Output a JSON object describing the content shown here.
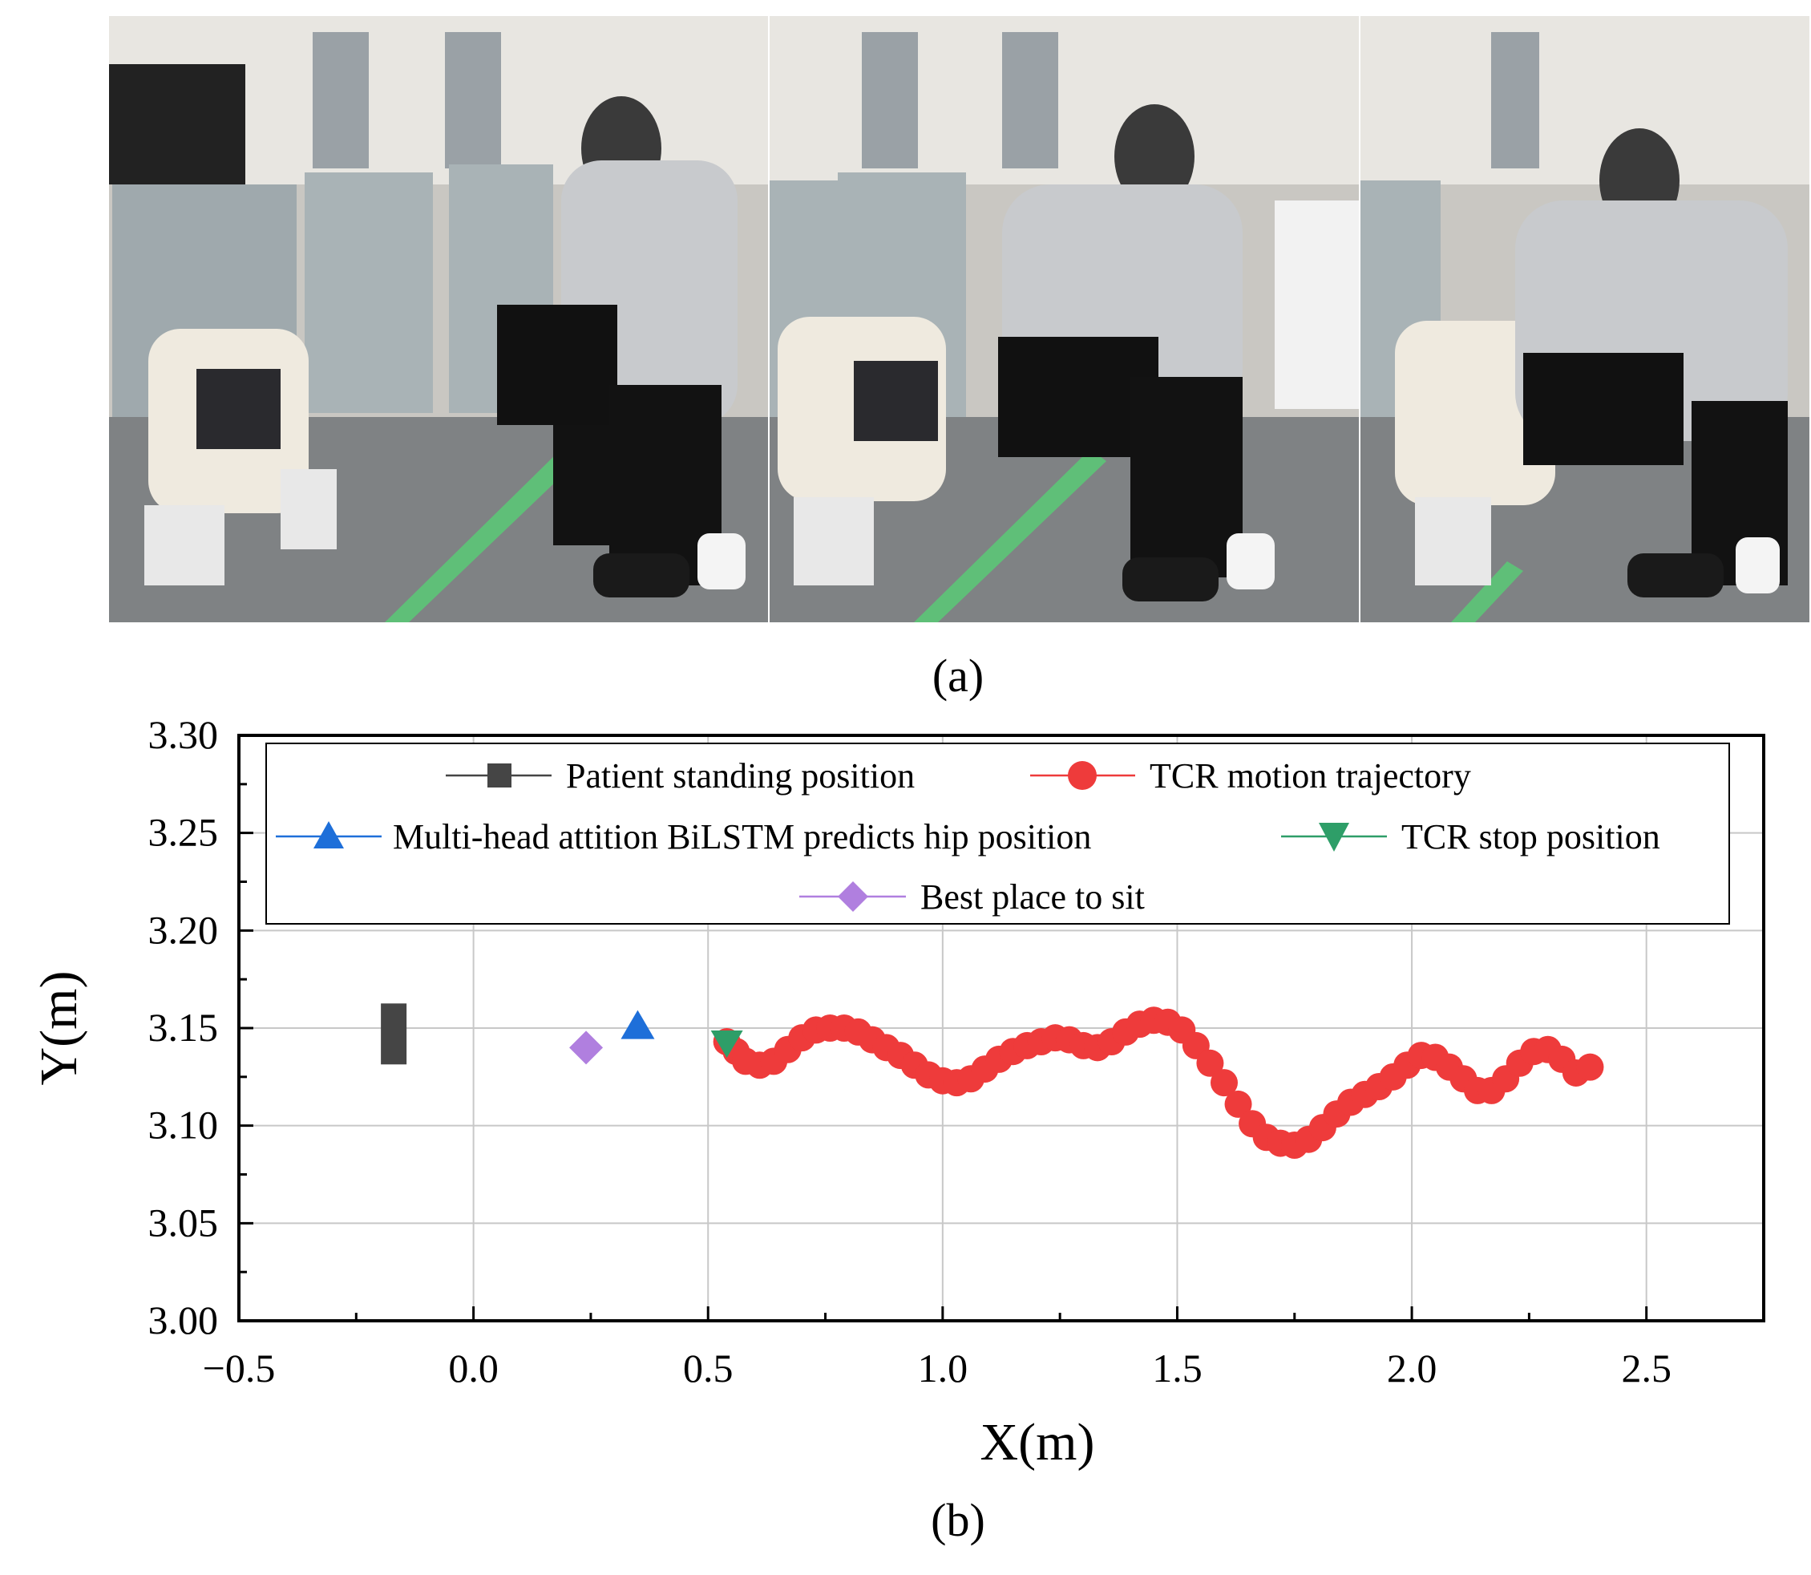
{
  "figure": {
    "panel_a_label": "(a)",
    "panel_b_label": "(b)",
    "photo_frames": [
      {
        "name": "frame-1",
        "description_icon": "person-assisting-patient-standing"
      },
      {
        "name": "frame-2",
        "description_icon": "person-assisting-patient-crouching"
      },
      {
        "name": "frame-3",
        "description_icon": "person-assisting-patient-sitting"
      }
    ]
  },
  "chart_data": {
    "type": "scatter",
    "title": "",
    "xlabel": "X(m)",
    "ylabel": "Y(m)",
    "xlim": [
      -0.5,
      2.75
    ],
    "ylim": [
      3.0,
      3.3
    ],
    "grid": true,
    "x_ticks": [
      -0.5,
      0.0,
      0.5,
      1.0,
      1.5,
      2.0,
      2.5
    ],
    "x_tick_labels": [
      "−0.5",
      "0.0",
      "0.5",
      "1.0",
      "1.5",
      "2.0",
      "2.5"
    ],
    "y_ticks": [
      3.0,
      3.05,
      3.1,
      3.15,
      3.2,
      3.25,
      3.3
    ],
    "y_tick_labels": [
      "3.00",
      "3.05",
      "3.10",
      "3.15",
      "3.20",
      "3.25",
      "3.30"
    ],
    "legend_position": "top",
    "series": [
      {
        "name": "Patient standing position",
        "marker": "square",
        "color": "#454545",
        "points": [
          [
            -0.17,
            3.147
          ]
        ]
      },
      {
        "name": "TCR motion trajectory",
        "marker": "circle",
        "color": "#ee3b3b",
        "points": [
          [
            0.54,
            3.143
          ],
          [
            0.56,
            3.138
          ],
          [
            0.58,
            3.133
          ],
          [
            0.61,
            3.131
          ],
          [
            0.64,
            3.133
          ],
          [
            0.67,
            3.139
          ],
          [
            0.7,
            3.145
          ],
          [
            0.73,
            3.149
          ],
          [
            0.76,
            3.15
          ],
          [
            0.79,
            3.15
          ],
          [
            0.82,
            3.148
          ],
          [
            0.85,
            3.144
          ],
          [
            0.88,
            3.14
          ],
          [
            0.91,
            3.136
          ],
          [
            0.94,
            3.131
          ],
          [
            0.97,
            3.126
          ],
          [
            1.0,
            3.123
          ],
          [
            1.03,
            3.122
          ],
          [
            1.06,
            3.124
          ],
          [
            1.09,
            3.129
          ],
          [
            1.12,
            3.134
          ],
          [
            1.15,
            3.138
          ],
          [
            1.18,
            3.141
          ],
          [
            1.21,
            3.143
          ],
          [
            1.24,
            3.145
          ],
          [
            1.27,
            3.144
          ],
          [
            1.3,
            3.141
          ],
          [
            1.33,
            3.14
          ],
          [
            1.36,
            3.143
          ],
          [
            1.39,
            3.148
          ],
          [
            1.42,
            3.152
          ],
          [
            1.45,
            3.154
          ],
          [
            1.48,
            3.153
          ],
          [
            1.51,
            3.149
          ],
          [
            1.54,
            3.141
          ],
          [
            1.57,
            3.132
          ],
          [
            1.6,
            3.122
          ],
          [
            1.63,
            3.111
          ],
          [
            1.66,
            3.101
          ],
          [
            1.69,
            3.094
          ],
          [
            1.72,
            3.091
          ],
          [
            1.75,
            3.09
          ],
          [
            1.78,
            3.093
          ],
          [
            1.81,
            3.099
          ],
          [
            1.84,
            3.106
          ],
          [
            1.87,
            3.112
          ],
          [
            1.9,
            3.116
          ],
          [
            1.93,
            3.12
          ],
          [
            1.96,
            3.125
          ],
          [
            1.99,
            3.131
          ],
          [
            2.02,
            3.136
          ],
          [
            2.05,
            3.135
          ],
          [
            2.08,
            3.13
          ],
          [
            2.11,
            3.124
          ],
          [
            2.14,
            3.118
          ],
          [
            2.17,
            3.118
          ],
          [
            2.2,
            3.124
          ],
          [
            2.23,
            3.132
          ],
          [
            2.26,
            3.138
          ],
          [
            2.29,
            3.139
          ],
          [
            2.32,
            3.134
          ],
          [
            2.35,
            3.127
          ],
          [
            2.38,
            3.13
          ]
        ]
      },
      {
        "name": "Multi-head attition BiLSTM predicts hip position",
        "marker": "triangle-up",
        "color": "#1e6fd9",
        "points": [
          [
            0.35,
            3.151
          ]
        ]
      },
      {
        "name": "TCR stop position",
        "marker": "triangle-down",
        "color": "#2e9e68",
        "points": [
          [
            0.54,
            3.143
          ]
        ]
      },
      {
        "name": "Best place to sit",
        "marker": "diamond",
        "color": "#b07fdf",
        "points": [
          [
            0.24,
            3.14
          ]
        ]
      }
    ]
  }
}
